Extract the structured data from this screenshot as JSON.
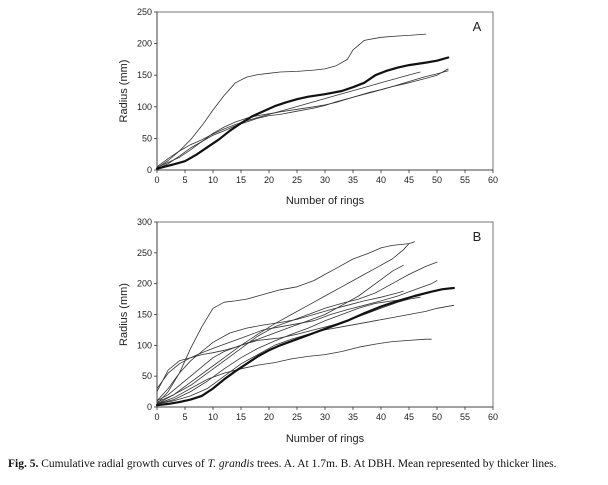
{
  "caption": {
    "label": "Fig. 5.",
    "text_before": " Cumulative radial growth curves of ",
    "species": "T. grandis",
    "text_after": " trees. A. At 1.7m. B. At DBH. Mean represented by thicker lines."
  },
  "chart_data": [
    {
      "type": "line",
      "panel_label": "A",
      "xlabel": "Number of rings",
      "ylabel": "Radius (mm)",
      "xlim": [
        0,
        60
      ],
      "ylim": [
        0,
        250
      ],
      "xticks": [
        0,
        5,
        10,
        15,
        20,
        25,
        30,
        35,
        40,
        45,
        50,
        55,
        60
      ],
      "yticks": [
        0,
        50,
        100,
        150,
        200,
        250
      ],
      "grid": false,
      "series": [
        {
          "role": "tree",
          "x": [
            0,
            2,
            4,
            6,
            8,
            10,
            12,
            14,
            16,
            18,
            20,
            22,
            25,
            28,
            30,
            32,
            34,
            35,
            37,
            40,
            43,
            45,
            48
          ],
          "y": [
            3,
            15,
            30,
            48,
            70,
            95,
            118,
            138,
            147,
            151,
            153,
            155,
            156,
            158,
            160,
            165,
            175,
            190,
            205,
            210,
            212,
            213,
            215
          ]
        },
        {
          "role": "tree",
          "x": [
            0,
            2,
            4,
            6,
            8,
            10,
            12,
            14,
            16,
            18,
            20,
            24,
            28,
            32,
            36,
            40,
            44,
            47
          ],
          "y": [
            5,
            18,
            30,
            40,
            48,
            57,
            65,
            72,
            78,
            83,
            88,
            98,
            108,
            118,
            128,
            138,
            148,
            155
          ]
        },
        {
          "role": "tree",
          "x": [
            0,
            2,
            4,
            6,
            8,
            10,
            12,
            14,
            16,
            18,
            20,
            22,
            25,
            28,
            30,
            32,
            35,
            38,
            40,
            42,
            45,
            48,
            50,
            52
          ],
          "y": [
            2,
            10,
            22,
            35,
            45,
            55,
            62,
            70,
            76,
            82,
            86,
            88,
            93,
            98,
            102,
            108,
            115,
            122,
            127,
            132,
            138,
            145,
            150,
            160
          ]
        },
        {
          "role": "tree",
          "x": [
            0,
            2,
            4,
            6,
            8,
            10,
            12,
            14,
            16,
            18,
            20,
            22,
            25,
            28,
            30,
            32,
            35,
            38,
            40,
            42,
            45,
            48,
            50,
            52
          ],
          "y": [
            4,
            12,
            20,
            32,
            45,
            58,
            68,
            76,
            82,
            86,
            89,
            92,
            96,
            100,
            103,
            107,
            115,
            123,
            127,
            132,
            140,
            148,
            152,
            157
          ]
        },
        {
          "role": "mean",
          "x": [
            0,
            3,
            5,
            7,
            9,
            11,
            13,
            15,
            17,
            19,
            21,
            23,
            25,
            27,
            30,
            33,
            35,
            37,
            39,
            41,
            43,
            45,
            48,
            50,
            52
          ],
          "y": [
            2,
            9,
            14,
            24,
            36,
            48,
            62,
            74,
            85,
            93,
            101,
            107,
            112,
            116,
            120,
            125,
            131,
            138,
            150,
            157,
            162,
            166,
            170,
            173,
            178
          ]
        }
      ]
    },
    {
      "type": "line",
      "panel_label": "B",
      "xlabel": "Number of rings",
      "ylabel": "Radius (mm)",
      "xlim": [
        0,
        60
      ],
      "ylim": [
        0,
        300
      ],
      "xticks": [
        0,
        5,
        10,
        15,
        20,
        25,
        30,
        35,
        40,
        45,
        50,
        55,
        60
      ],
      "yticks": [
        0,
        50,
        100,
        150,
        200,
        250,
        300
      ],
      "grid": false,
      "series": [
        {
          "role": "tree",
          "x": [
            0,
            2,
            4,
            6,
            8,
            10,
            12,
            14,
            16,
            18,
            20,
            22,
            25,
            28,
            30,
            32,
            35,
            38,
            40,
            42,
            45,
            46
          ],
          "y": [
            5,
            25,
            55,
            95,
            130,
            160,
            170,
            172,
            175,
            180,
            185,
            190,
            195,
            205,
            215,
            225,
            240,
            250,
            258,
            262,
            265,
            268
          ]
        },
        {
          "role": "tree",
          "x": [
            0,
            3,
            6,
            9,
            12,
            15,
            18,
            21,
            24,
            27,
            30,
            33,
            36,
            39,
            42,
            44,
            45
          ],
          "y": [
            5,
            20,
            40,
            60,
            80,
            100,
            118,
            135,
            150,
            165,
            180,
            195,
            210,
            225,
            240,
            255,
            265
          ]
        },
        {
          "role": "tree",
          "x": [
            0,
            2,
            4,
            6,
            8,
            10,
            12,
            15,
            18,
            21,
            24,
            27,
            30,
            33,
            36,
            39,
            42,
            44
          ],
          "y": [
            10,
            20,
            35,
            50,
            65,
            80,
            90,
            100,
            110,
            120,
            130,
            140,
            150,
            165,
            180,
            200,
            220,
            230
          ]
        },
        {
          "role": "tree",
          "x": [
            0,
            3,
            6,
            9,
            12,
            15,
            18,
            21,
            24,
            27,
            30,
            33,
            36,
            39,
            42,
            45,
            48,
            50
          ],
          "y": [
            8,
            20,
            35,
            55,
            75,
            95,
            115,
            130,
            140,
            150,
            160,
            168,
            175,
            185,
            200,
            215,
            228,
            235
          ]
        },
        {
          "role": "tree",
          "x": [
            0,
            2,
            4,
            6,
            8,
            10,
            13,
            16,
            19,
            22,
            25,
            28,
            31,
            34,
            37,
            40,
            43,
            46,
            49,
            50
          ],
          "y": [
            25,
            60,
            75,
            80,
            88,
            95,
            105,
            115,
            125,
            130,
            135,
            140,
            150,
            158,
            165,
            172,
            180,
            190,
            200,
            205
          ]
        },
        {
          "role": "tree",
          "x": [
            0,
            3,
            6,
            9,
            12,
            15,
            18,
            21,
            24,
            27,
            30,
            33,
            36,
            39,
            42,
            45,
            48,
            50,
            53
          ],
          "y": [
            5,
            10,
            18,
            30,
            50,
            70,
            85,
            100,
            110,
            118,
            125,
            130,
            135,
            140,
            145,
            150,
            155,
            160,
            165
          ]
        },
        {
          "role": "tree",
          "x": [
            0,
            2,
            4,
            6,
            8,
            10,
            12,
            14,
            16,
            18,
            20,
            22,
            25,
            28,
            31,
            34,
            37,
            40,
            43,
            45
          ],
          "y": [
            30,
            55,
            70,
            80,
            85,
            88,
            92,
            97,
            103,
            108,
            110,
            112,
            118,
            125,
            132,
            140,
            150,
            160,
            170,
            175
          ]
        },
        {
          "role": "tree",
          "x": [
            0,
            3,
            6,
            9,
            12,
            15,
            18,
            21,
            24,
            27,
            30,
            33,
            36,
            39,
            42,
            45,
            48,
            49
          ],
          "y": [
            5,
            15,
            30,
            45,
            55,
            62,
            68,
            72,
            78,
            82,
            85,
            90,
            97,
            102,
            106,
            108,
            110,
            110
          ]
        },
        {
          "role": "tree",
          "x": [
            0,
            2,
            4,
            6,
            8,
            10,
            13,
            16,
            19,
            22,
            25,
            28,
            31,
            34,
            37,
            40,
            43,
            44
          ],
          "y": [
            10,
            30,
            55,
            75,
            90,
            105,
            120,
            128,
            133,
            137,
            142,
            150,
            158,
            165,
            172,
            178,
            185,
            188
          ]
        },
        {
          "role": "tree",
          "x": [
            0,
            3,
            6,
            9,
            12,
            15,
            18,
            21,
            24,
            27,
            30,
            33,
            36,
            39,
            42,
            45,
            47
          ],
          "y": [
            5,
            12,
            25,
            42,
            62,
            80,
            95,
            107,
            118,
            128,
            140,
            150,
            160,
            168,
            172,
            175,
            178
          ]
        },
        {
          "role": "mean",
          "x": [
            0,
            2,
            4,
            6,
            8,
            10,
            12,
            14,
            16,
            18,
            20,
            22,
            25,
            28,
            31,
            34,
            37,
            40,
            43,
            46,
            49,
            51,
            53
          ],
          "y": [
            3,
            5,
            8,
            12,
            18,
            30,
            45,
            58,
            70,
            82,
            92,
            100,
            110,
            120,
            130,
            140,
            152,
            163,
            172,
            180,
            187,
            191,
            193
          ]
        }
      ]
    }
  ]
}
